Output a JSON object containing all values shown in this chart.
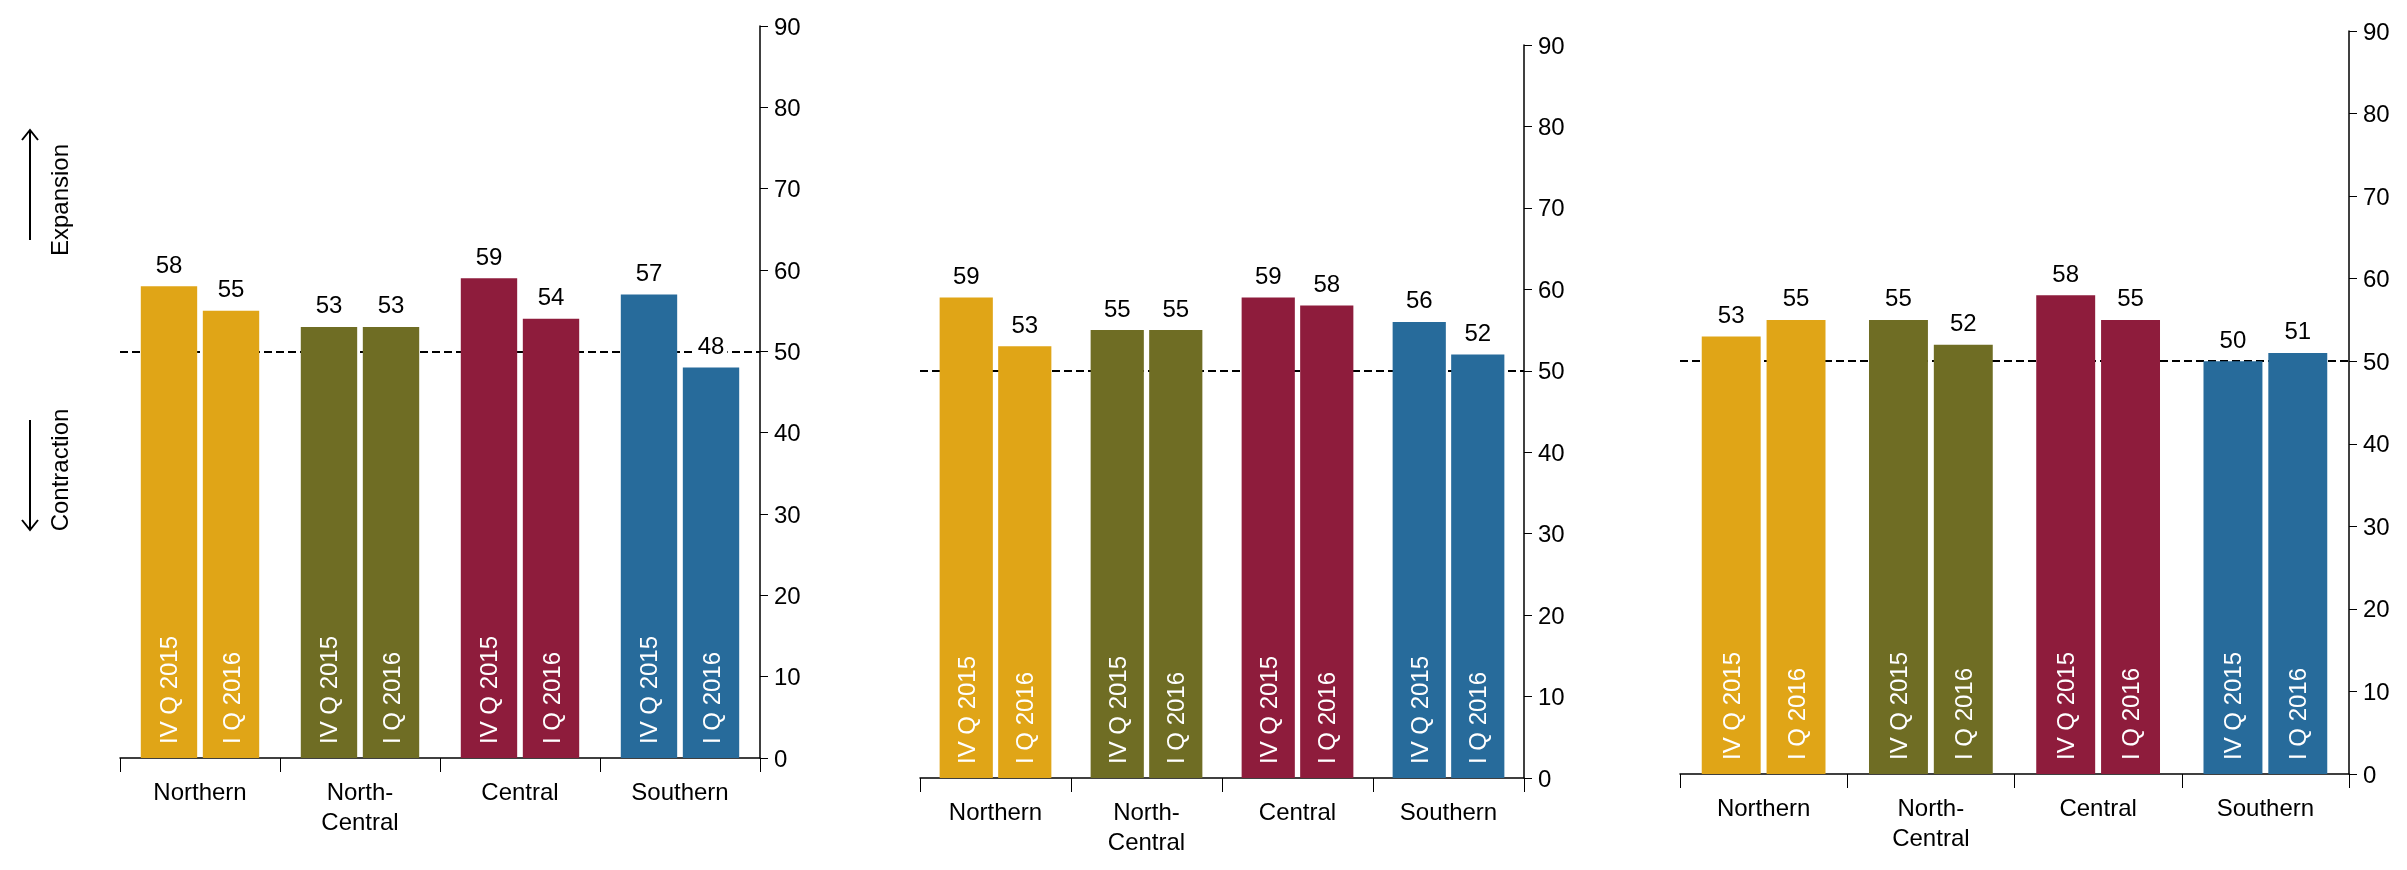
{
  "chart_data": [
    {
      "type": "bar",
      "categories": [
        "Northern",
        "North-\nCentral",
        "Central",
        "Southern"
      ],
      "series": [
        {
          "name": "IV Q 2015",
          "values": [
            58,
            53,
            59,
            57
          ],
          "colors": [
            "#e0a517",
            "#6f6d24",
            "#8e1c3c",
            "#276b9b"
          ]
        },
        {
          "name": "I Q 2016",
          "values": [
            55,
            53,
            54,
            48
          ],
          "colors": [
            "#e0a517",
            "#6f6d24",
            "#8e1c3c",
            "#276b9b"
          ]
        }
      ],
      "ylim": [
        0,
        90
      ],
      "yticks": [
        0,
        10,
        20,
        30,
        40,
        50,
        60,
        70,
        80,
        90
      ],
      "data_labels": true,
      "grid": false,
      "legend": false,
      "ref_lines": [
        {
          "axis": "y",
          "value": 50,
          "line_style": "dashed",
          "color": "#000000"
        }
      ],
      "annotations": [
        "Expansion",
        "Contraction"
      ]
    },
    {
      "type": "bar",
      "categories": [
        "Northern",
        "North-\nCentral",
        "Central",
        "Southern"
      ],
      "series": [
        {
          "name": "IV Q 2015",
          "values": [
            59,
            55,
            59,
            56
          ],
          "colors": [
            "#e0a517",
            "#6f6d24",
            "#8e1c3c",
            "#276b9b"
          ]
        },
        {
          "name": "I Q 2016",
          "values": [
            53,
            55,
            58,
            52
          ],
          "colors": [
            "#e0a517",
            "#6f6d24",
            "#8e1c3c",
            "#276b9b"
          ]
        }
      ],
      "ylim": [
        0,
        90
      ],
      "yticks": [
        0,
        10,
        20,
        30,
        40,
        50,
        60,
        70,
        80,
        90
      ],
      "data_labels": true,
      "grid": false,
      "legend": false,
      "ref_lines": [
        {
          "axis": "y",
          "value": 50,
          "line_style": "dashed",
          "color": "#000000"
        }
      ]
    },
    {
      "type": "bar",
      "categories": [
        "Northern",
        "North-\nCentral",
        "Central",
        "Southern"
      ],
      "series": [
        {
          "name": "IV Q 2015",
          "values": [
            53,
            55,
            58,
            50
          ],
          "colors": [
            "#e0a517",
            "#6f6d24",
            "#8e1c3c",
            "#276b9b"
          ]
        },
        {
          "name": "I Q 2016",
          "values": [
            55,
            52,
            55,
            51
          ],
          "colors": [
            "#e0a517",
            "#6f6d24",
            "#8e1c3c",
            "#276b9b"
          ]
        }
      ],
      "ylim": [
        0,
        90
      ],
      "yticks": [
        0,
        10,
        20,
        30,
        40,
        50,
        60,
        70,
        80,
        90
      ],
      "data_labels": true,
      "grid": false,
      "legend": false,
      "ref_lines": [
        {
          "axis": "y",
          "value": 50,
          "line_style": "dashed",
          "color": "#000000"
        }
      ]
    }
  ]
}
